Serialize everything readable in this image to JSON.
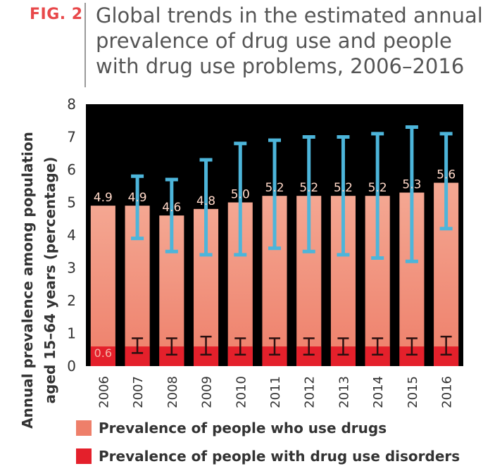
{
  "figure_label": "FIG. 2",
  "title_lines": [
    "Global trends in the estimated annual",
    "prevalence of drug use and people",
    "with drug use problems, 2006–2016"
  ],
  "ylabel_lines": [
    "Annual prevalence among population",
    "aged 15–64 years (percentage)"
  ],
  "colors": {
    "background": "#000000",
    "use": "#ee7f6a",
    "use_light": "#f4a792",
    "disorders": "#e4202b",
    "error_use": "#4db5da",
    "error_disorders": "#2a1010",
    "label_use": "#ffd8c8",
    "label_disorder": "#f5b5a8"
  },
  "legend": [
    {
      "label": "Prevalence of people who use drugs",
      "color": "#ee7f6a"
    },
    {
      "label": "Prevalence of people with drug use disorders",
      "color": "#e4202b"
    }
  ],
  "chart_data": {
    "type": "bar",
    "title": "Global trends in the estimated annual prevalence of drug use and people with drug use problems, 2006–2016",
    "ylabel": "Annual prevalence among population aged 15–64 years (percentage)",
    "xlabel": "",
    "ylim": [
      0,
      8
    ],
    "yticks": [
      0,
      1,
      2,
      3,
      4,
      5,
      6,
      7,
      8
    ],
    "categories": [
      "2006",
      "2007",
      "2008",
      "2009",
      "2010",
      "2011",
      "2012",
      "2013",
      "2014",
      "2015",
      "2016"
    ],
    "value_labels": [
      "4.9",
      "4.9",
      "4.6",
      "4.8",
      "5.0",
      "5.2",
      "5.2",
      "5.2",
      "5.2",
      "5.3",
      "5.6"
    ],
    "disorder_label": "0.6",
    "series": [
      {
        "name": "Prevalence of people who use drugs",
        "values": [
          4.9,
          4.9,
          4.6,
          4.8,
          5.0,
          5.2,
          5.2,
          5.2,
          5.2,
          5.3,
          5.6
        ],
        "error_low": [
          null,
          3.9,
          3.5,
          3.4,
          3.4,
          3.6,
          3.5,
          3.4,
          3.3,
          3.2,
          4.2
        ],
        "error_high": [
          null,
          5.8,
          5.7,
          6.3,
          6.8,
          6.9,
          7.0,
          7.0,
          7.1,
          7.3,
          7.1
        ]
      },
      {
        "name": "Prevalence of people with drug use disorders",
        "values": [
          0.6,
          0.6,
          0.6,
          0.6,
          0.6,
          0.6,
          0.6,
          0.6,
          0.6,
          0.6,
          0.6
        ],
        "error_low": [
          null,
          0.4,
          0.35,
          0.35,
          0.35,
          0.35,
          0.35,
          0.35,
          0.35,
          0.35,
          0.35
        ],
        "error_high": [
          null,
          0.85,
          0.85,
          0.9,
          0.85,
          0.85,
          0.85,
          0.85,
          0.85,
          0.85,
          0.9
        ]
      }
    ],
    "grid": false,
    "legend_position": "bottom"
  }
}
